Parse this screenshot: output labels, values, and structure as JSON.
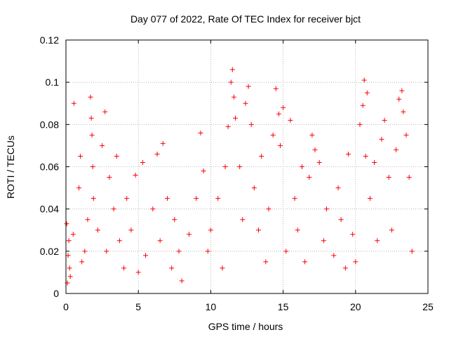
{
  "chart_data": {
    "type": "scatter",
    "title": "Day 077 of 2022, Rate Of TEC Index for receiver bjct",
    "xlabel": "GPS time / hours",
    "ylabel": "ROTI / TECUs",
    "xlim": [
      0,
      25
    ],
    "ylim": [
      0,
      0.12
    ],
    "x_ticks": [
      0,
      5,
      10,
      15,
      20,
      25
    ],
    "x_tick_labels": [
      "0",
      "5",
      "10",
      "15",
      "20",
      "25"
    ],
    "y_ticks": [
      0,
      0.02,
      0.04,
      0.06,
      0.08,
      0.1,
      0.12
    ],
    "y_tick_labels": [
      "0",
      "0.02",
      "0.04",
      "0.06",
      "0.08",
      "0.1",
      "0.12"
    ],
    "grid": true,
    "marker": "plus",
    "color": "#ff0000",
    "series": [
      {
        "x": [
          0.05,
          0.1,
          0.15,
          0.2,
          0.25,
          0.3,
          0.5,
          0.55,
          0.9,
          1.0,
          1.1,
          1.3,
          1.5,
          1.7,
          1.75,
          1.8,
          1.85,
          1.9,
          2.2,
          2.5,
          2.7,
          2.8,
          3.0,
          3.3,
          3.5,
          3.7,
          4.0,
          4.2,
          4.5,
          4.8,
          5.0,
          5.3,
          5.5,
          6.0,
          6.3,
          6.5,
          6.7,
          7.0,
          7.3,
          7.5,
          7.8,
          8.0,
          8.5,
          9.0,
          9.3,
          9.5,
          9.8,
          10.0,
          10.5,
          10.8,
          11.0,
          11.2,
          11.4,
          11.5,
          11.6,
          11.7,
          12.0,
          12.2,
          12.4,
          12.6,
          12.8,
          13.0,
          13.3,
          13.5,
          13.8,
          14.0,
          14.3,
          14.5,
          14.7,
          14.8,
          15.0,
          15.2,
          15.5,
          15.8,
          16.0,
          16.3,
          16.5,
          16.8,
          17.0,
          17.2,
          17.5,
          17.8,
          18.0,
          18.5,
          18.8,
          19.0,
          19.3,
          19.5,
          19.8,
          20.0,
          20.3,
          20.5,
          20.6,
          20.7,
          20.8,
          21.0,
          21.3,
          21.5,
          21.8,
          22.0,
          22.3,
          22.5,
          22.8,
          23.0,
          23.2,
          23.3,
          23.5,
          23.7,
          23.9
        ],
        "y": [
          0.033,
          0.005,
          0.018,
          0.025,
          0.012,
          0.008,
          0.028,
          0.09,
          0.05,
          0.065,
          0.015,
          0.02,
          0.035,
          0.093,
          0.083,
          0.075,
          0.06,
          0.045,
          0.03,
          0.07,
          0.086,
          0.02,
          0.055,
          0.04,
          0.065,
          0.025,
          0.012,
          0.045,
          0.03,
          0.056,
          0.01,
          0.062,
          0.018,
          0.04,
          0.066,
          0.025,
          0.071,
          0.045,
          0.012,
          0.035,
          0.02,
          0.006,
          0.028,
          0.045,
          0.076,
          0.058,
          0.02,
          0.03,
          0.045,
          0.012,
          0.06,
          0.079,
          0.1,
          0.106,
          0.093,
          0.083,
          0.06,
          0.035,
          0.09,
          0.098,
          0.08,
          0.05,
          0.03,
          0.065,
          0.015,
          0.04,
          0.075,
          0.097,
          0.085,
          0.07,
          0.088,
          0.02,
          0.082,
          0.045,
          0.03,
          0.06,
          0.015,
          0.055,
          0.075,
          0.068,
          0.062,
          0.025,
          0.04,
          0.018,
          0.05,
          0.035,
          0.012,
          0.066,
          0.028,
          0.015,
          0.08,
          0.089,
          0.101,
          0.065,
          0.095,
          0.045,
          0.062,
          0.025,
          0.073,
          0.082,
          0.055,
          0.03,
          0.068,
          0.092,
          0.096,
          0.086,
          0.075,
          0.055,
          0.02
        ]
      }
    ]
  }
}
